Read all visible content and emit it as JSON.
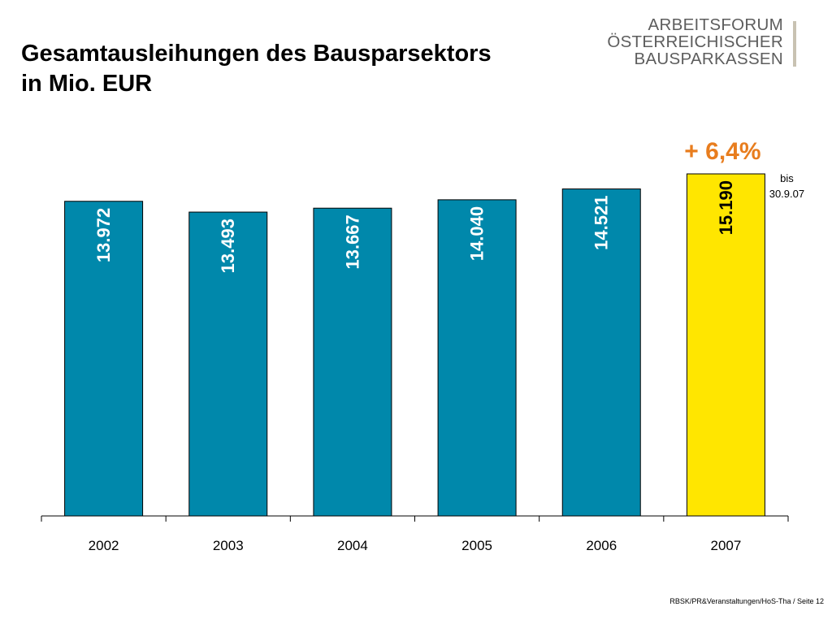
{
  "title_line1": "Gesamtausleihungen des Bausparsektors",
  "title_line2": "in Mio. EUR",
  "logo": {
    "line1": "ARBEITSFORUM",
    "line2": "ÖSTERREICHISCHER",
    "line3": "BAUSPARKASSEN"
  },
  "footer": "RBSK/PR&Veranstaltungen/HoS-Tha / Seite 12",
  "colors": {
    "bar": "#0088ab",
    "highlight": "#ffe600",
    "growth": "#e87d1e"
  },
  "chart_data": {
    "type": "bar",
    "categories": [
      "2002",
      "2003",
      "2004",
      "2005",
      "2006",
      "2007"
    ],
    "values": [
      13972,
      13493,
      13667,
      14040,
      14521,
      15190
    ],
    "value_labels": [
      "13.972",
      "13.493",
      "13.667",
      "14.040",
      "14.521",
      "15.190"
    ],
    "highlight_index": 5,
    "ylim": [
      0,
      15190
    ],
    "grid": false,
    "annotations": {
      "growth": "+ 6,4%",
      "note_line1": "bis",
      "note_line2": "30.9.07"
    }
  }
}
